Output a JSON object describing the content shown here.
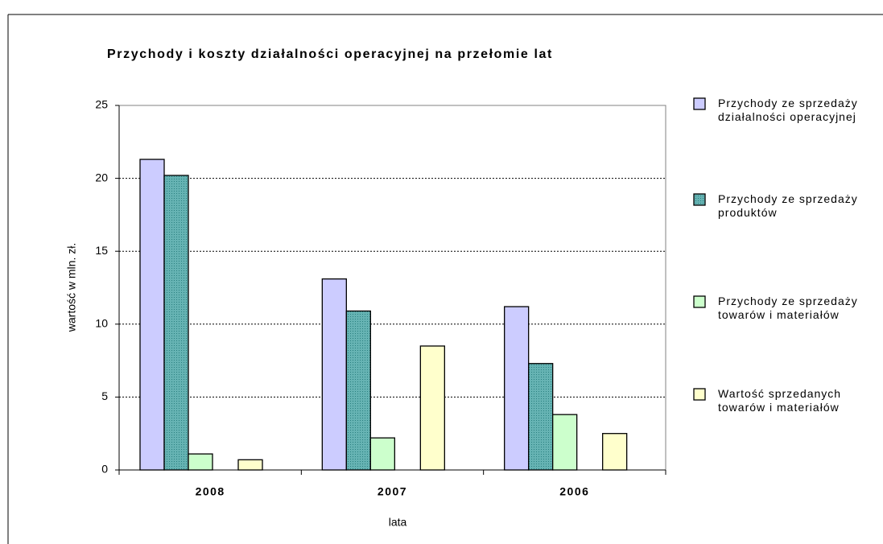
{
  "chart_data": {
    "type": "bar",
    "title": "Przychody i koszty działalności operacyjnej na przełomie lat",
    "x_label": "lata",
    "y_label": "wartość w mln. zł.",
    "categories": [
      "2008",
      "2007",
      "2006"
    ],
    "series": [
      {
        "name": "Przychody ze sprzedaży działalności operacyjnej",
        "color": "#ccccff",
        "values": [
          21.3,
          13.1,
          11.2
        ]
      },
      {
        "name": "Przychody ze sprzedaży produktów",
        "color": "#66b3b3",
        "values": [
          20.2,
          10.9,
          7.3
        ]
      },
      {
        "name": "Przychody ze sprzedaży towarów i materiałów",
        "color": "#ccffcc",
        "values": [
          1.1,
          2.2,
          3.8
        ]
      },
      {
        "name": "Wartość sprzedanych towarów i materiałów",
        "color": "#ffffcc",
        "values": [
          0.7,
          8.5,
          2.5
        ]
      }
    ],
    "ylim": [
      0,
      25
    ],
    "yticks": [
      0,
      5,
      10,
      15,
      20,
      25
    ],
    "grid": true
  }
}
